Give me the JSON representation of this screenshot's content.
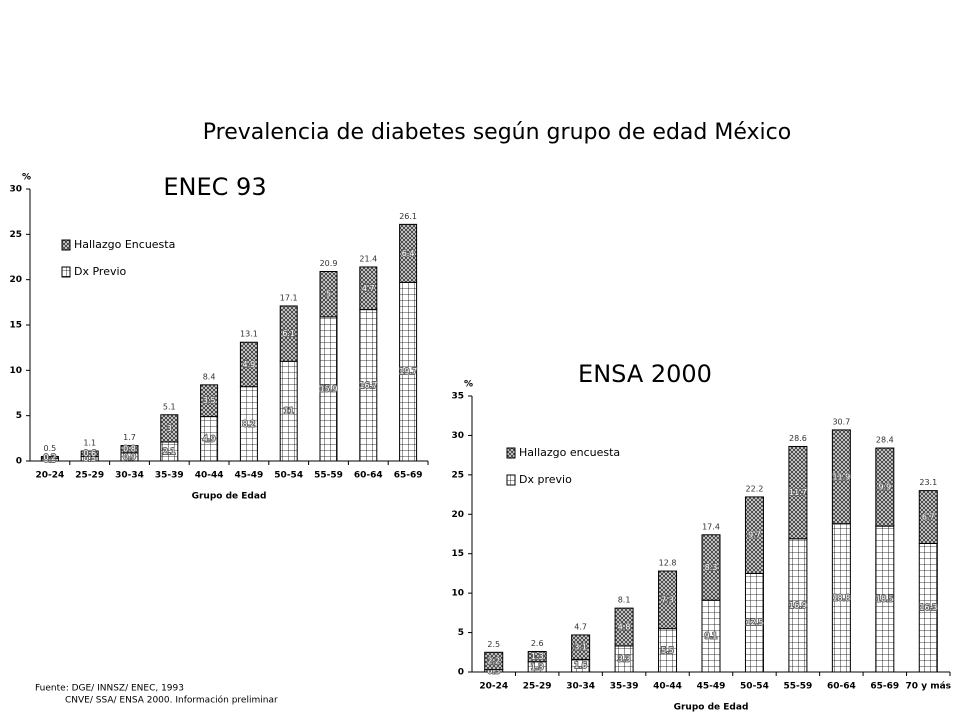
{
  "title": "Prevalencia de diabetes según grupo de edad México",
  "source": [
    "Fuente: DGE/ INNSZ/ ENEC, 1993",
    "CNVE/ SSA/ ENSA 2000. Información preliminar"
  ],
  "chart_data": [
    {
      "type": "stacked_bar",
      "title": "ENEC 93",
      "y_label": "%",
      "x_label": "Grupo de Edad",
      "categories": [
        "20-24",
        "25-29",
        "30-34",
        "35-39",
        "40-44",
        "45-49",
        "50-54",
        "55-59",
        "60-64",
        "65-69"
      ],
      "series": [
        {
          "name": "Dx Previo",
          "color": "#ffffff",
          "pattern": "grid",
          "values": [
            0.3,
            0.5,
            0.9,
            2.1,
            4.9,
            8.2,
            11.0,
            15.9,
            16.7,
            19.7
          ]
        },
        {
          "name": "Hallazgo Encuesta",
          "color": "#8c8c8c",
          "pattern": "crosshatch",
          "values": [
            0.2,
            0.6,
            0.8,
            3.0,
            3.5,
            4.9,
            6.1,
            5.0,
            4.7,
            6.4
          ]
        }
      ],
      "totals": [
        0.5,
        1.1,
        1.7,
        5.1,
        8.4,
        13.1,
        17.1,
        20.9,
        21.4,
        26.1
      ],
      "ylim": [
        0,
        30
      ],
      "yticks": [
        0,
        5,
        10,
        15,
        20,
        25,
        30
      ],
      "grid": false
    },
    {
      "type": "stacked_bar",
      "title": "ENSA 2000",
      "y_label": "%",
      "x_label": "Grupo de Edad",
      "categories": [
        "20-24",
        "25-29",
        "30-34",
        "35-39",
        "40-44",
        "45-49",
        "50-54",
        "55-59",
        "60-64",
        "65-69",
        "70 y más"
      ],
      "series": [
        {
          "name": "Dx previo",
          "color": "#ffffff",
          "pattern": "grid",
          "values": [
            0.3,
            1.3,
            1.6,
            3.3,
            5.5,
            9.1,
            12.5,
            16.9,
            18.8,
            18.5,
            16.3
          ]
        },
        {
          "name": "Hallazgo encuesta",
          "color": "#8c8c8c",
          "pattern": "crosshatch",
          "values": [
            2.2,
            1.3,
            3.1,
            4.8,
            7.3,
            8.3,
            9.7,
            11.7,
            11.9,
            9.9,
            6.7
          ]
        }
      ],
      "totals": [
        2.5,
        2.6,
        4.7,
        8.1,
        12.8,
        17.4,
        22.2,
        28.6,
        30.7,
        28.4,
        23.1
      ],
      "ylim": [
        0,
        35
      ],
      "yticks": [
        0,
        5,
        10,
        15,
        20,
        25,
        30,
        35
      ],
      "grid": false
    }
  ]
}
